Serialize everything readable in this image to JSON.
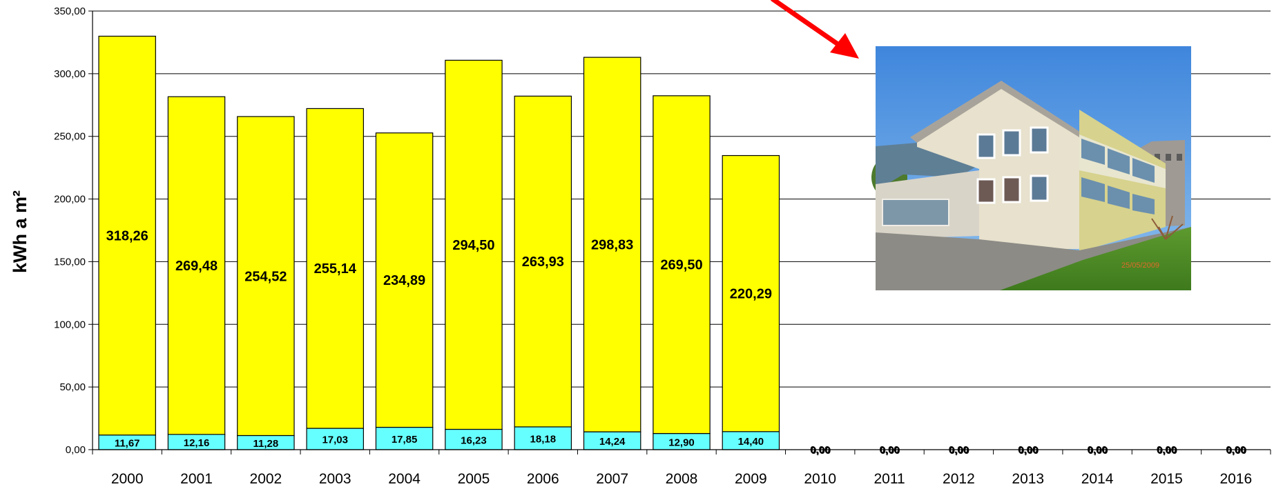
{
  "chart_data": {
    "type": "bar",
    "stacked": true,
    "ylabel": "kWh a m²",
    "ylim": [
      0,
      350
    ],
    "yticks": [
      "0,00",
      "50,00",
      "100,00",
      "150,00",
      "200,00",
      "250,00",
      "300,00",
      "350,00"
    ],
    "grid": true,
    "categories": [
      "2000",
      "2001",
      "2002",
      "2003",
      "2004",
      "2005",
      "2006",
      "2007",
      "2008",
      "2009",
      "2010",
      "2011",
      "2012",
      "2013",
      "2014",
      "2015",
      "2016"
    ],
    "series": [
      {
        "color": "#66ffff",
        "values": [
          11.67,
          12.16,
          11.28,
          17.03,
          17.85,
          16.23,
          18.18,
          14.24,
          12.9,
          14.4,
          0,
          0,
          0,
          0,
          0,
          0,
          0
        ],
        "labels": [
          "11,67",
          "12,16",
          "11,28",
          "17,03",
          "17,85",
          "16,23",
          "18,18",
          "14,24",
          "12,90",
          "14,40",
          "0,00",
          "0,00",
          "0,00",
          "0,00",
          "0,00",
          "0,00",
          "0,00"
        ]
      },
      {
        "color": "#ffff00",
        "values": [
          318.26,
          269.48,
          254.52,
          255.14,
          234.89,
          294.5,
          263.93,
          298.83,
          269.5,
          220.29,
          0,
          0,
          0,
          0,
          0,
          0,
          0
        ],
        "labels": [
          "318,26",
          "269,48",
          "254,52",
          "255,14",
          "234,89",
          "294,50",
          "263,93",
          "298,83",
          "269,50",
          "220,29",
          "0,00",
          "0,00",
          "0,00",
          "0,00",
          "0,00",
          "0,00",
          "0,00"
        ]
      }
    ],
    "annotations": {
      "arrow_color": "#ff0000",
      "photo_date": "25/05/2009"
    }
  }
}
